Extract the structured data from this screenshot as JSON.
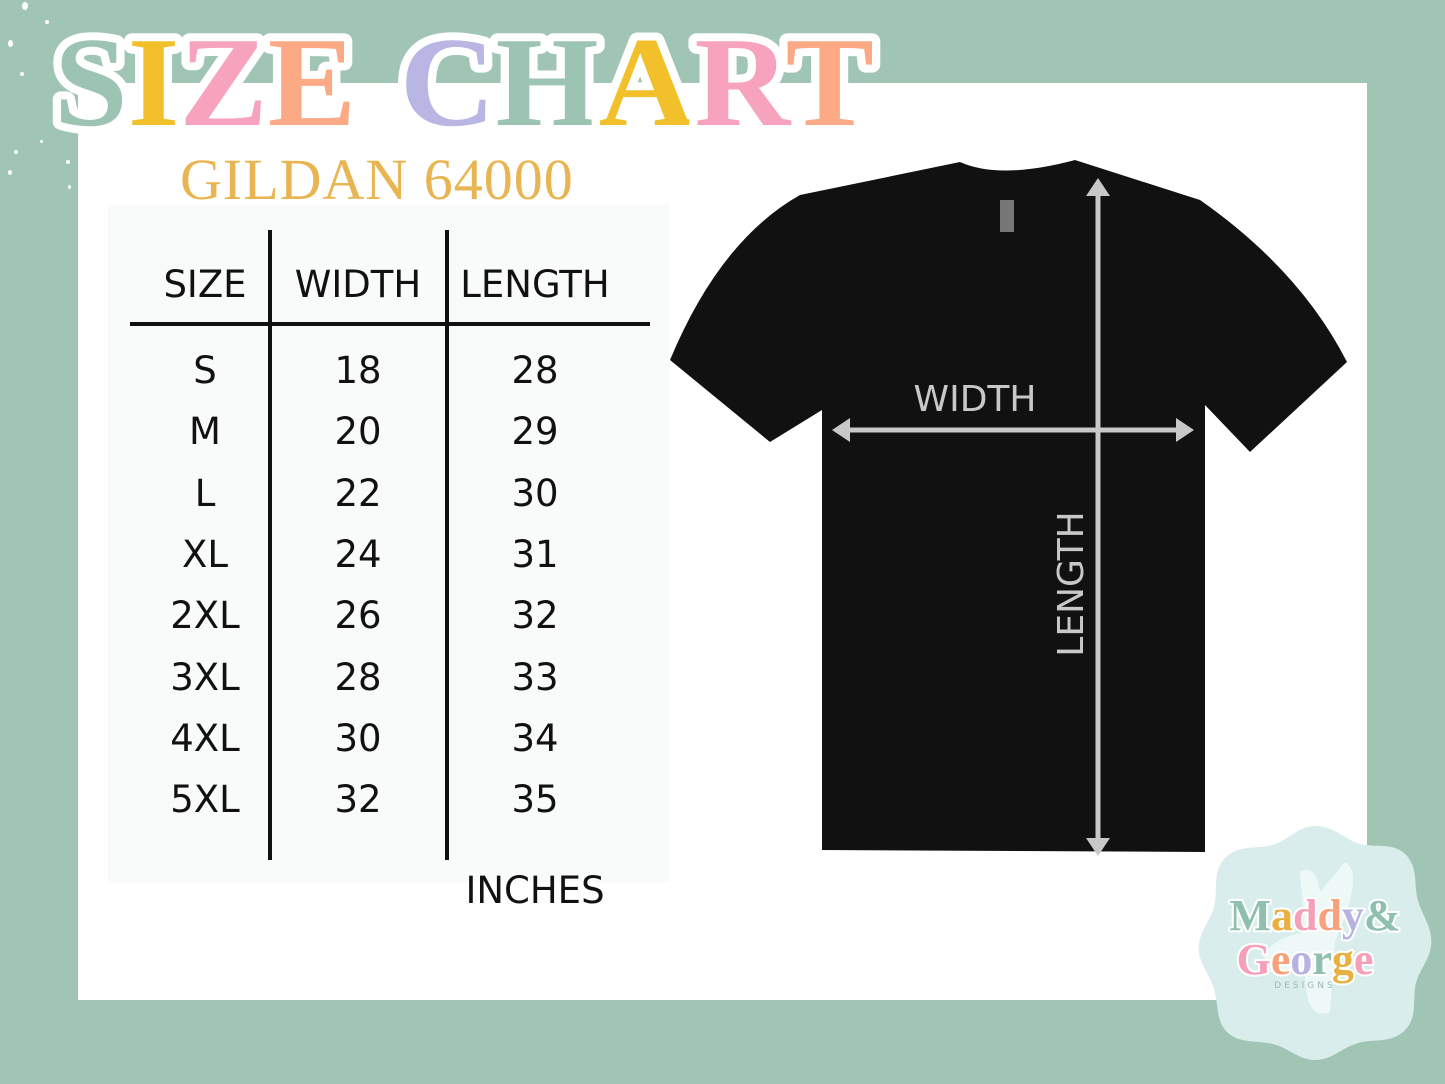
{
  "title": {
    "text": "SIZE CHART",
    "letters": [
      "S",
      "I",
      "Z",
      "E",
      " ",
      "C",
      "H",
      "A",
      "R",
      "T"
    ],
    "letter_colors": [
      "#9dc4b3",
      "#f2c02a",
      "#f7a3bd",
      "#fbaa85",
      "",
      "#b9b6e3",
      "#9dc4b3",
      "#f2c02a",
      "#f7a3bd",
      "#fbaa85"
    ]
  },
  "subtitle": "GILDAN 64000",
  "table": {
    "headers": [
      "SIZE",
      "WIDTH",
      "LENGTH"
    ],
    "rows": [
      [
        "S",
        "18",
        "28"
      ],
      [
        "M",
        "20",
        "29"
      ],
      [
        "L",
        "22",
        "30"
      ],
      [
        "XL",
        "24",
        "31"
      ],
      [
        "2XL",
        "26",
        "32"
      ],
      [
        "3XL",
        "28",
        "33"
      ],
      [
        "4XL",
        "30",
        "34"
      ],
      [
        "5XL",
        "32",
        "35"
      ]
    ],
    "unit": "INCHES"
  },
  "diagram": {
    "width_label": "WIDTH",
    "length_label": "LENGTH"
  },
  "logo": {
    "line1": "Maddy&",
    "line2": "George",
    "line3": "DESIGNS"
  },
  "colors": {
    "background": "#a1c5b5",
    "subtitle": "#e8b552",
    "shirt": "#111111",
    "arrows": "#c8c8c8"
  }
}
